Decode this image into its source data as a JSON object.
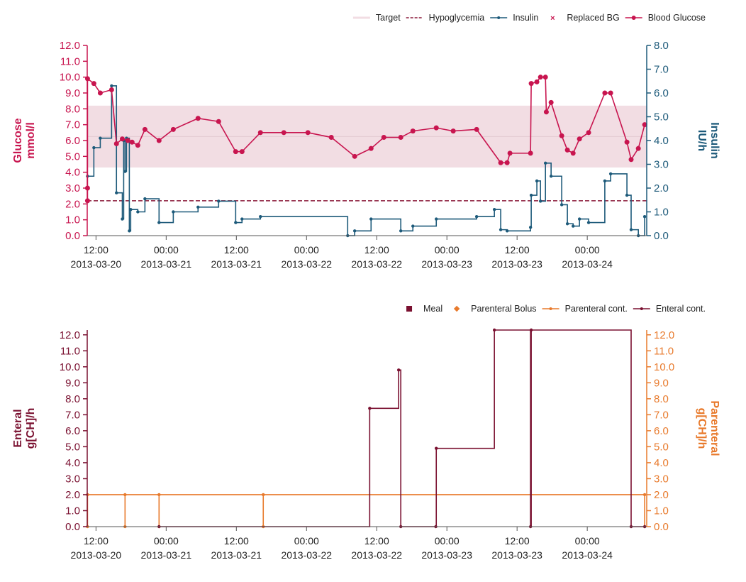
{
  "chart_data": [
    {
      "type": "line",
      "ylabel": [
        "Glucose",
        "mmol/l"
      ],
      "y2label": [
        "Insulin",
        "IU/h"
      ],
      "ycolor": "#c8154f",
      "y2color": "#1d5a7a",
      "xlim": [
        "2013-03-20 10:30",
        "2013-03-24 10:10"
      ],
      "xticks": [
        {
          "value": "2013-03-20 12:00",
          "label": [
            "12:00",
            "2013-03-20"
          ]
        },
        {
          "value": "2013-03-21 00:00",
          "label": [
            "00:00",
            "2013-03-21"
          ]
        },
        {
          "value": "2013-03-21 12:00",
          "label": [
            "12:00",
            "2013-03-21"
          ]
        },
        {
          "value": "2013-03-22 00:00",
          "label": [
            "00:00",
            "2013-03-22"
          ]
        },
        {
          "value": "2013-03-22 12:00",
          "label": [
            "12:00",
            "2013-03-22"
          ]
        },
        {
          "value": "2013-03-23 00:00",
          "label": [
            "00:00",
            "2013-03-23"
          ]
        },
        {
          "value": "2013-03-23 12:00",
          "label": [
            "12:00",
            "2013-03-23"
          ]
        },
        {
          "value": "2013-03-24 00:00",
          "label": [
            "00:00",
            "2013-03-24"
          ]
        }
      ],
      "ylim": [
        0,
        12
      ],
      "yticks": [
        {
          "value": 0,
          "label": "0.0"
        },
        {
          "value": 1,
          "label": "1.0"
        },
        {
          "value": 2,
          "label": "2.0"
        },
        {
          "value": 3,
          "label": "3.0"
        },
        {
          "value": 4,
          "label": "4.0"
        },
        {
          "value": 5,
          "label": "5.0"
        },
        {
          "value": 6,
          "label": "6.0"
        },
        {
          "value": 7,
          "label": "7.0"
        },
        {
          "value": 8,
          "label": "8.0"
        },
        {
          "value": 9,
          "label": "9.0"
        },
        {
          "value": 10,
          "label": "10.0"
        },
        {
          "value": 11,
          "label": "11.0"
        },
        {
          "value": 12,
          "label": "12.0"
        }
      ],
      "y2lim": [
        0,
        8
      ],
      "y2ticks": [
        {
          "value": 0,
          "label": "0.0"
        },
        {
          "value": 1,
          "label": "1.0"
        },
        {
          "value": 2,
          "label": "2.0"
        },
        {
          "value": 3,
          "label": "3.0"
        },
        {
          "value": 4,
          "label": "4.0"
        },
        {
          "value": 5,
          "label": "5.0"
        },
        {
          "value": 6,
          "label": "6.0"
        },
        {
          "value": 7,
          "label": "7.0"
        },
        {
          "value": 8,
          "label": "8.0"
        }
      ],
      "series": [
        {
          "name": "Target",
          "kind": "band",
          "color": "#f2dde3",
          "values": [
            4.3,
            8.2
          ]
        },
        {
          "name": "Hypoglycemia",
          "kind": "hline",
          "color": "#8b1a3a",
          "values": [
            2.2
          ]
        },
        {
          "name": "Insulin",
          "kind": "step",
          "axis": "y2",
          "color": "#1d5a7a",
          "x": [
            "2013-03-20 10:33",
            "2013-03-20 11:38",
            "2013-03-20 12:44",
            "2013-03-20 14:40",
            "2013-03-20 15:30",
            "2013-03-20 16:30",
            "2013-03-20 16:44",
            "2013-03-20 16:58",
            "2013-03-20 17:13",
            "2013-03-20 17:42",
            "2013-03-20 17:56",
            "2013-03-20 19:09",
            "2013-03-20 20:22",
            "2013-03-20 22:47",
            "2013-03-21 01:13",
            "2013-03-21 05:27",
            "2013-03-21 08:58",
            "2013-03-21 11:53",
            "2013-03-21 12:58",
            "2013-03-21 16:07",
            "2013-03-22 07:02",
            "2013-03-22 08:14",
            "2013-03-22 11:02",
            "2013-03-22 16:07",
            "2013-03-22 18:11",
            "2013-03-22 22:11",
            "2013-03-23 05:05",
            "2013-03-23 08:07",
            "2013-03-23 09:12",
            "2013-03-23 10:18",
            "2013-03-23 14:18",
            "2013-03-23 14:25",
            "2013-03-23 15:23",
            "2013-03-23 16:00",
            "2013-03-23 16:51",
            "2013-03-23 17:49",
            "2013-03-23 19:38",
            "2013-03-23 20:36",
            "2013-03-23 21:35",
            "2013-03-23 22:40",
            "2013-03-24 00:14",
            "2013-03-24 03:00",
            "2013-03-24 04:00",
            "2013-03-24 06:47",
            "2013-03-24 07:30",
            "2013-03-24 08:44",
            "2013-03-24 09:49"
          ],
          "values": [
            2.5,
            3.7,
            4.1,
            6.3,
            1.8,
            0.7,
            4.0,
            2.7,
            4.1,
            0.2,
            1.1,
            1.0,
            1.55,
            0.55,
            1.0,
            1.2,
            1.45,
            0.55,
            0.7,
            0.8,
            0.0,
            0.2,
            0.7,
            0.2,
            0.4,
            0.7,
            0.8,
            1.1,
            0.25,
            0.2,
            0.35,
            1.7,
            2.3,
            1.45,
            3.05,
            2.5,
            1.3,
            0.5,
            0.4,
            0.7,
            0.55,
            2.3,
            2.6,
            1.7,
            0.25,
            0.0,
            0.8
          ]
        },
        {
          "name": "Replaced BG",
          "kind": "cross",
          "color": "#c8154f",
          "x": [],
          "values": []
        },
        {
          "name": "Blood Glucose",
          "kind": "line",
          "color": "#c8154f",
          "x": [
            "2013-03-20 10:33",
            "2013-03-20 10:33",
            "2013-03-20 10:33",
            "2013-03-20 11:38",
            "2013-03-20 12:44",
            "2013-03-20 14:40",
            "2013-03-20 15:30",
            "2013-03-20 16:30",
            "2013-03-20 17:27",
            "2013-03-20 18:10",
            "2013-03-20 19:09",
            "2013-03-20 20:22",
            "2013-03-20 22:47",
            "2013-03-21 01:13",
            "2013-03-21 05:27",
            "2013-03-21 08:58",
            "2013-03-21 11:53",
            "2013-03-21 12:58",
            "2013-03-21 16:07",
            "2013-03-21 20:07",
            "2013-03-22 00:14",
            "2013-03-22 04:14",
            "2013-03-22 08:14",
            "2013-03-22 11:02",
            "2013-03-22 13:13",
            "2013-03-22 16:07",
            "2013-03-22 18:11",
            "2013-03-22 22:11",
            "2013-03-23 01:05",
            "2013-03-23 05:05",
            "2013-03-23 09:12",
            "2013-03-23 10:18",
            "2013-03-23 10:47",
            "2013-03-23 14:18",
            "2013-03-23 14:25",
            "2013-03-23 15:23",
            "2013-03-23 16:00",
            "2013-03-23 16:51",
            "2013-03-23 17:00",
            "2013-03-23 17:49",
            "2013-03-23 19:38",
            "2013-03-23 20:36",
            "2013-03-23 21:35",
            "2013-03-23 22:40",
            "2013-03-24 00:14",
            "2013-03-24 03:00",
            "2013-03-24 04:00",
            "2013-03-24 06:47",
            "2013-03-24 07:30",
            "2013-03-24 08:44",
            "2013-03-24 09:49"
          ],
          "values": [
            2.2,
            3.0,
            9.9,
            9.6,
            9.0,
            9.2,
            5.8,
            6.1,
            6.0,
            5.9,
            5.7,
            6.7,
            6.0,
            6.7,
            7.4,
            7.2,
            5.3,
            5.3,
            6.5,
            6.5,
            6.5,
            6.2,
            5.0,
            5.5,
            6.2,
            6.2,
            6.6,
            6.8,
            6.6,
            6.7,
            4.6,
            4.6,
            5.2,
            5.2,
            9.6,
            9.7,
            10.0,
            10.0,
            7.8,
            8.4,
            6.3,
            5.4,
            5.2,
            6.1,
            6.5,
            9.0,
            9.0,
            5.9,
            4.8,
            5.5,
            7.0
          ]
        }
      ]
    },
    {
      "type": "line",
      "ylabel": [
        "Enteral",
        "g[CH]/h"
      ],
      "y2label": [
        "Parenteral",
        "g[CH]/h"
      ],
      "ycolor": "#7a1030",
      "y2color": "#e87a2c",
      "xlim": [
        "2013-03-20 10:30",
        "2013-03-24 10:10"
      ],
      "xticks": [
        {
          "value": "2013-03-20 12:00",
          "label": [
            "12:00",
            "2013-03-20"
          ]
        },
        {
          "value": "2013-03-21 00:00",
          "label": [
            "00:00",
            "2013-03-21"
          ]
        },
        {
          "value": "2013-03-21 12:00",
          "label": [
            "12:00",
            "2013-03-21"
          ]
        },
        {
          "value": "2013-03-22 00:00",
          "label": [
            "00:00",
            "2013-03-22"
          ]
        },
        {
          "value": "2013-03-22 12:00",
          "label": [
            "12:00",
            "2013-03-22"
          ]
        },
        {
          "value": "2013-03-23 00:00",
          "label": [
            "00:00",
            "2013-03-23"
          ]
        },
        {
          "value": "2013-03-23 12:00",
          "label": [
            "12:00",
            "2013-03-23"
          ]
        },
        {
          "value": "2013-03-24 00:00",
          "label": [
            "00:00",
            "2013-03-24"
          ]
        }
      ],
      "ylim": [
        0,
        12.3
      ],
      "yticks": [
        {
          "value": 0,
          "label": "0.0"
        },
        {
          "value": 1,
          "label": "1.0"
        },
        {
          "value": 2,
          "label": "2.0"
        },
        {
          "value": 3,
          "label": "3.0"
        },
        {
          "value": 4,
          "label": "4.0"
        },
        {
          "value": 5,
          "label": "5.0"
        },
        {
          "value": 6,
          "label": "6.0"
        },
        {
          "value": 7,
          "label": "7.0"
        },
        {
          "value": 8,
          "label": "8.0"
        },
        {
          "value": 9,
          "label": "9.0"
        },
        {
          "value": 10,
          "label": "10.0"
        },
        {
          "value": 11,
          "label": "11.0"
        },
        {
          "value": 12,
          "label": "12.0"
        }
      ],
      "y2lim": [
        0,
        12.3
      ],
      "y2ticks": [
        {
          "value": 0,
          "label": "0.0"
        },
        {
          "value": 1,
          "label": "1.0"
        },
        {
          "value": 2,
          "label": "2.0"
        },
        {
          "value": 3,
          "label": "3.0"
        },
        {
          "value": 4,
          "label": "4.0"
        },
        {
          "value": 5,
          "label": "5.0"
        },
        {
          "value": 6,
          "label": "6.0"
        },
        {
          "value": 7,
          "label": "7.0"
        },
        {
          "value": 8,
          "label": "8.0"
        },
        {
          "value": 9,
          "label": "9.0"
        },
        {
          "value": 10,
          "label": "10.0"
        },
        {
          "value": 11,
          "label": "11.0"
        },
        {
          "value": 12,
          "label": "12.0"
        }
      ],
      "series": [
        {
          "name": "Meal",
          "kind": "square",
          "color": "#7a1030",
          "x": [],
          "values": []
        },
        {
          "name": "Parenteral Bolus",
          "kind": "diamond",
          "axis": "y2",
          "color": "#e87a2c",
          "x": [],
          "values": []
        },
        {
          "name": "Parenteral cont.",
          "kind": "pulse",
          "axis": "y2",
          "color": "#e87a2c",
          "x": [
            "2013-03-20 10:33",
            "2013-03-20 16:58",
            "2013-03-20 22:47",
            "2013-03-21 16:36",
            "2013-03-24 09:49"
          ],
          "values": [
            2,
            2,
            2,
            2,
            2
          ]
        },
        {
          "name": "Enteral cont.",
          "kind": "step",
          "color": "#7a1030",
          "x": [
            "2013-03-20 22:47",
            "2013-03-22 10:48",
            "2013-03-22 15:45",
            "2013-03-22 16:07",
            "2013-03-22 22:06",
            "2013-03-22 22:11",
            "2013-03-23 08:07",
            "2013-03-23 14:18",
            "2013-03-23 14:25",
            "2013-03-24 07:30",
            "2013-03-24 09:49"
          ],
          "values": [
            0,
            7.4,
            9.8,
            0,
            0,
            4.9,
            12.3,
            0,
            12.3,
            0,
            0
          ]
        }
      ]
    }
  ]
}
